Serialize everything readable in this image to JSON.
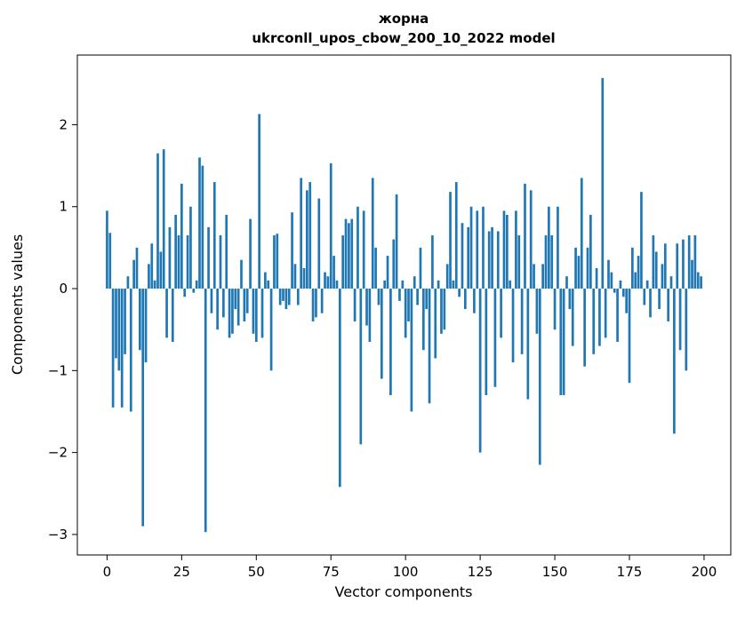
{
  "chart_data": {
    "type": "bar",
    "title_line1": "жорна",
    "title_line2": "ukrconll_upos_cbow_200_10_2022 model",
    "xlabel": "Vector components",
    "ylabel": "Components values",
    "bar_color": "#1f77b4",
    "legend": "none",
    "grid": false,
    "xlim": [
      -9.95,
      208.95
    ],
    "ylim": [
      -3.25,
      2.85
    ],
    "xticks": [
      0,
      25,
      50,
      75,
      100,
      125,
      150,
      175,
      200
    ],
    "yticks": [
      -3,
      -2,
      -1,
      0,
      1,
      2
    ],
    "values": [
      0.95,
      0.68,
      -1.45,
      -0.85,
      -1.0,
      -1.45,
      -0.8,
      0.15,
      -1.5,
      0.35,
      0.5,
      -0.75,
      -2.9,
      -0.9,
      0.3,
      0.55,
      0.1,
      1.65,
      0.45,
      1.7,
      -0.6,
      0.75,
      -0.65,
      0.9,
      0.65,
      1.28,
      -0.1,
      0.65,
      1.0,
      -0.05,
      0.1,
      1.6,
      1.5,
      -2.97,
      0.75,
      -0.3,
      1.3,
      -0.5,
      0.65,
      -0.35,
      0.9,
      -0.6,
      -0.55,
      -0.25,
      -0.45,
      0.35,
      -0.4,
      -0.3,
      0.85,
      -0.55,
      -0.65,
      2.13,
      -0.6,
      0.2,
      0.1,
      -1.0,
      0.65,
      0.67,
      -0.2,
      -0.15,
      -0.25,
      -0.2,
      0.93,
      0.3,
      -0.2,
      1.35,
      0.25,
      1.2,
      1.3,
      -0.4,
      -0.35,
      1.1,
      -0.3,
      0.2,
      0.15,
      1.53,
      0.4,
      0.1,
      -2.42,
      0.65,
      0.85,
      0.8,
      0.85,
      -0.4,
      1.0,
      -1.9,
      0.95,
      -0.45,
      -0.65,
      1.35,
      0.5,
      -0.2,
      -1.1,
      0.1,
      0.4,
      -1.3,
      0.6,
      1.15,
      -0.15,
      0.1,
      -0.6,
      -0.4,
      -1.5,
      0.15,
      -0.2,
      0.5,
      -0.75,
      -0.25,
      -1.4,
      0.65,
      -0.85,
      0.1,
      -0.55,
      -0.5,
      0.3,
      1.18,
      0.1,
      1.3,
      -0.1,
      0.8,
      -0.25,
      0.75,
      1.0,
      -0.3,
      0.95,
      -2.0,
      1.0,
      -1.3,
      0.7,
      0.75,
      -1.2,
      0.7,
      -0.6,
      0.95,
      0.9,
      0.1,
      -0.9,
      0.95,
      0.65,
      -0.8,
      1.28,
      -1.35,
      1.2,
      0.3,
      -0.55,
      -2.15,
      0.3,
      0.65,
      1.0,
      0.65,
      -0.5,
      1.0,
      -1.3,
      -1.3,
      0.15,
      -0.25,
      -0.7,
      0.5,
      0.4,
      1.35,
      -0.95,
      0.5,
      0.9,
      -0.8,
      0.25,
      -0.7,
      2.57,
      -0.6,
      0.35,
      0.2,
      -0.05,
      -0.65,
      0.1,
      -0.1,
      -0.3,
      -1.15,
      0.5,
      0.2,
      0.4,
      1.18,
      -0.2,
      0.1,
      -0.35,
      0.65,
      0.45,
      -0.25,
      0.3,
      0.55,
      -0.4,
      0.15,
      -1.77,
      0.55,
      -0.75,
      0.6,
      -1.0,
      0.65,
      0.35,
      0.65,
      0.2,
      0.15
    ]
  }
}
